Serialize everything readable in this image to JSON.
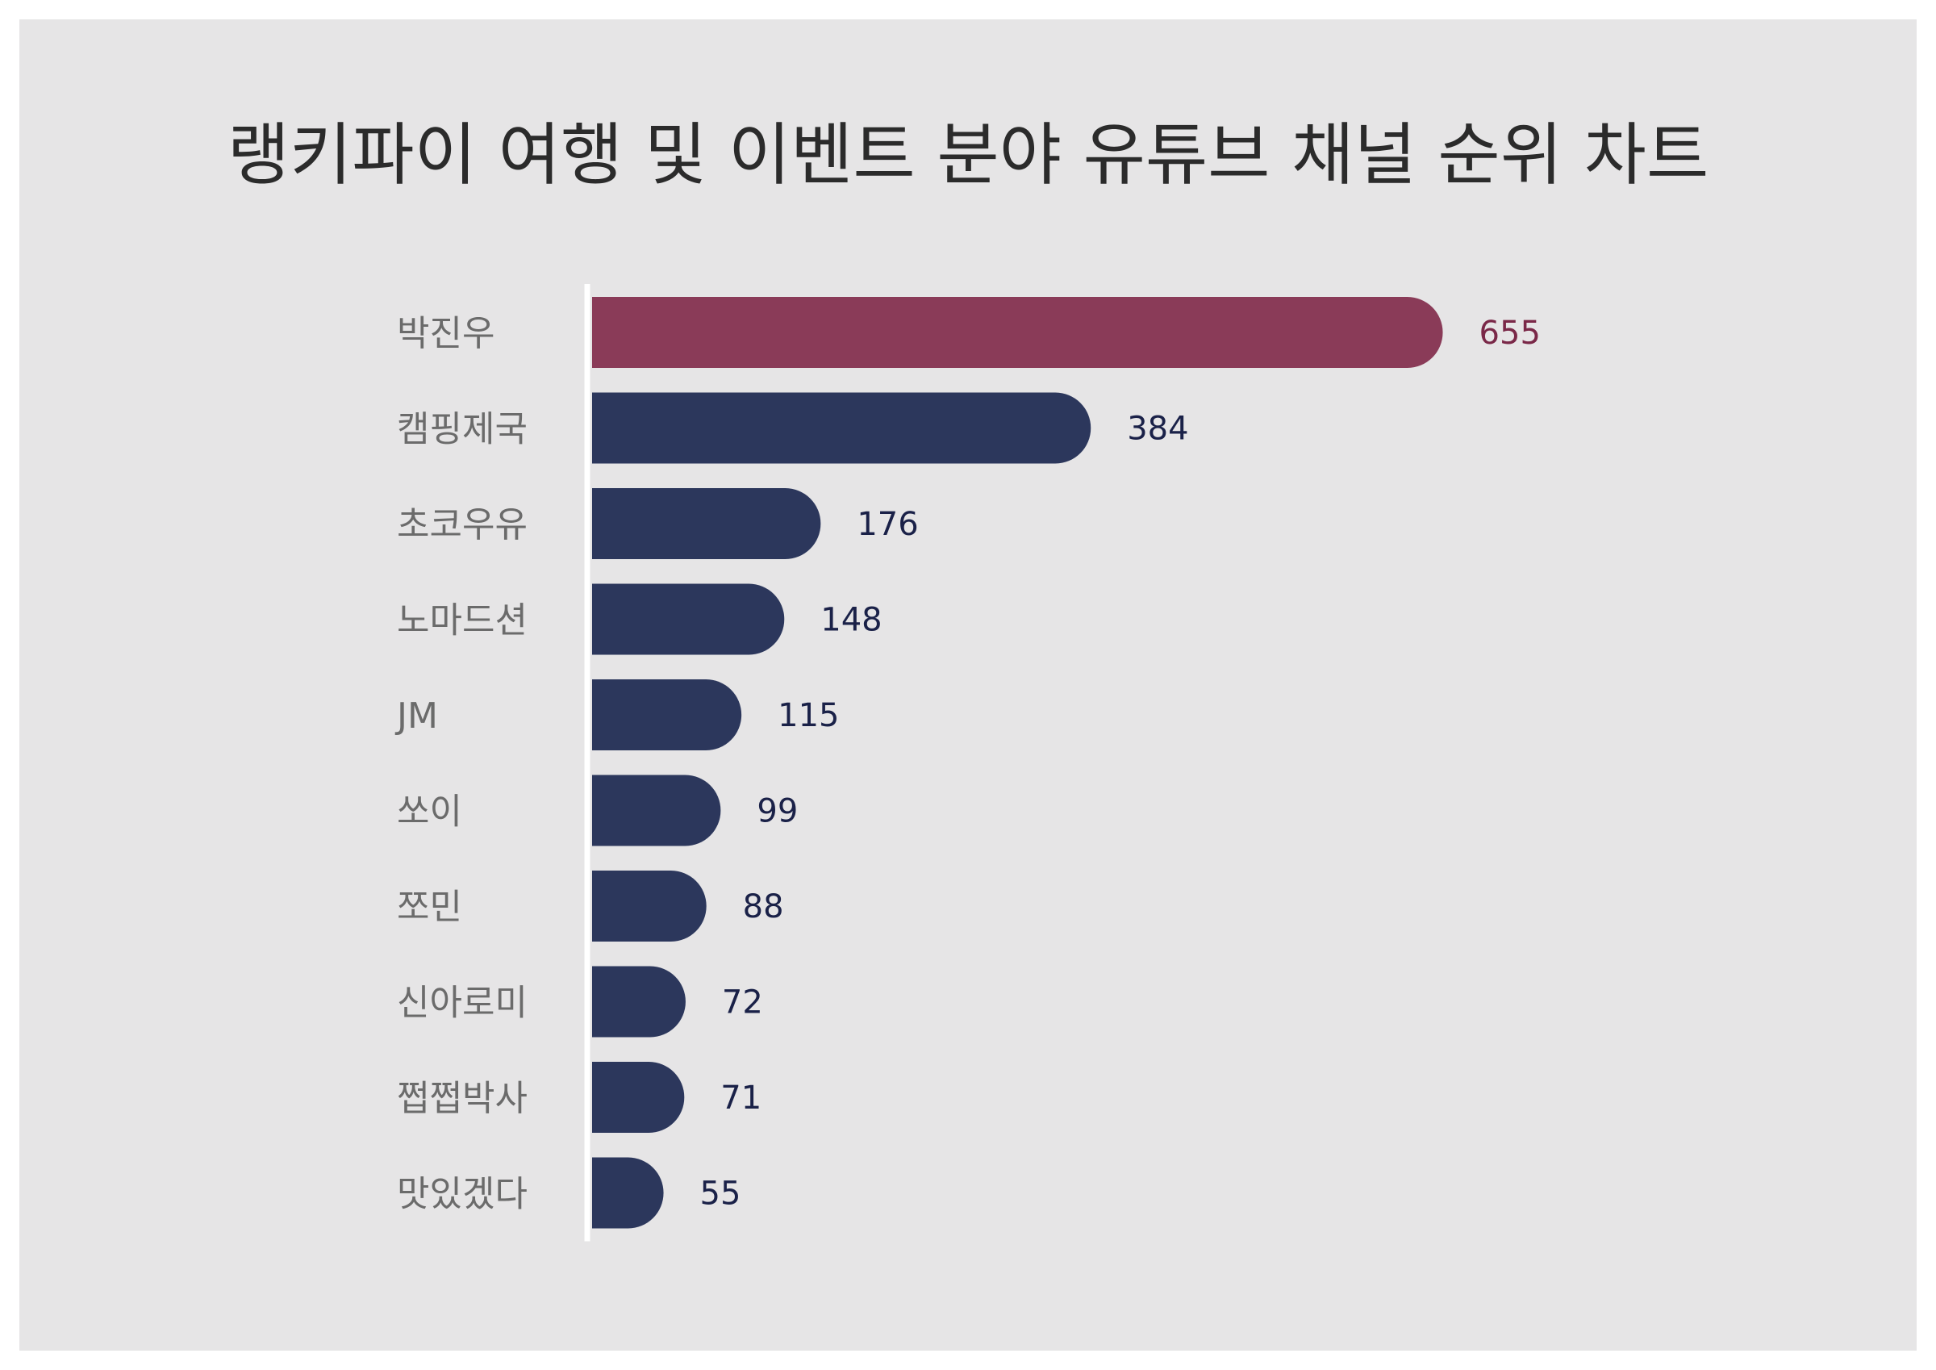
{
  "chart_data": {
    "type": "bar",
    "orientation": "horizontal",
    "title": "랭키파이 여행 및 이벤트 분야 유튜브 채널 순위 차트",
    "categories": [
      "박진우",
      "캠핑제국",
      "초코우유",
      "노마드션",
      "JM",
      "쏘이",
      "쪼민",
      "신아로미",
      "쩝쩝박사",
      "맛있겠다"
    ],
    "values": [
      655,
      384,
      176,
      148,
      115,
      99,
      88,
      72,
      71,
      55
    ],
    "highlight_index": 0,
    "colors": {
      "highlight_bar": "#8a3b58",
      "default_bar": "#2c375c",
      "highlight_label": "#7a2848",
      "default_label": "#1a2148",
      "category_label": "#6b6b6b",
      "axis_line": "#ffffff",
      "background": "#e6e5e6"
    },
    "grid": false,
    "legend": "none"
  }
}
